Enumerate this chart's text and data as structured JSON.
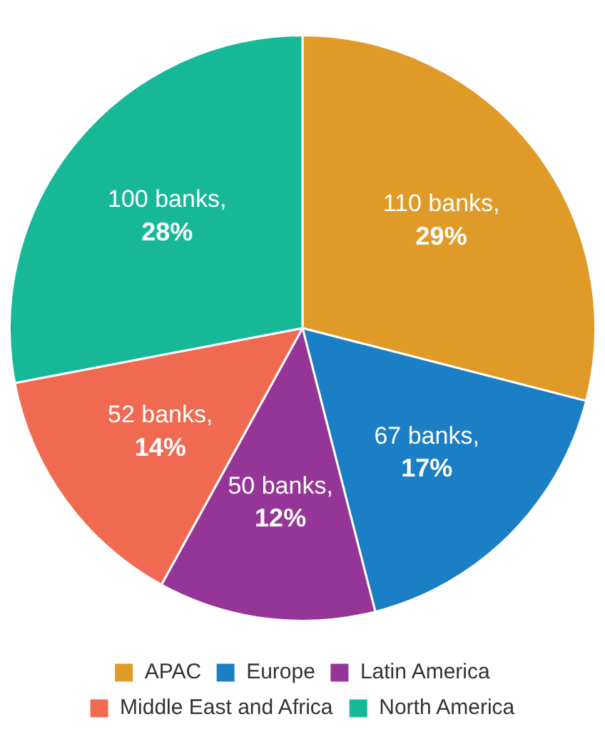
{
  "chart_data": {
    "type": "pie",
    "categories": [
      "APAC",
      "Europe",
      "Latin America",
      "Middle East and Africa",
      "North America"
    ],
    "values": [
      29,
      17,
      12,
      14,
      28
    ],
    "colors": [
      "#e09a27",
      "#1a7fc4",
      "#953597",
      "#ef6a50",
      "#16b898"
    ],
    "value_labels": [
      "110 banks, 29%",
      "67 banks, 17%",
      "50 banks, 12%",
      "52 banks, 14%",
      "100 banks, 28%"
    ],
    "legend": "bottom"
  }
}
